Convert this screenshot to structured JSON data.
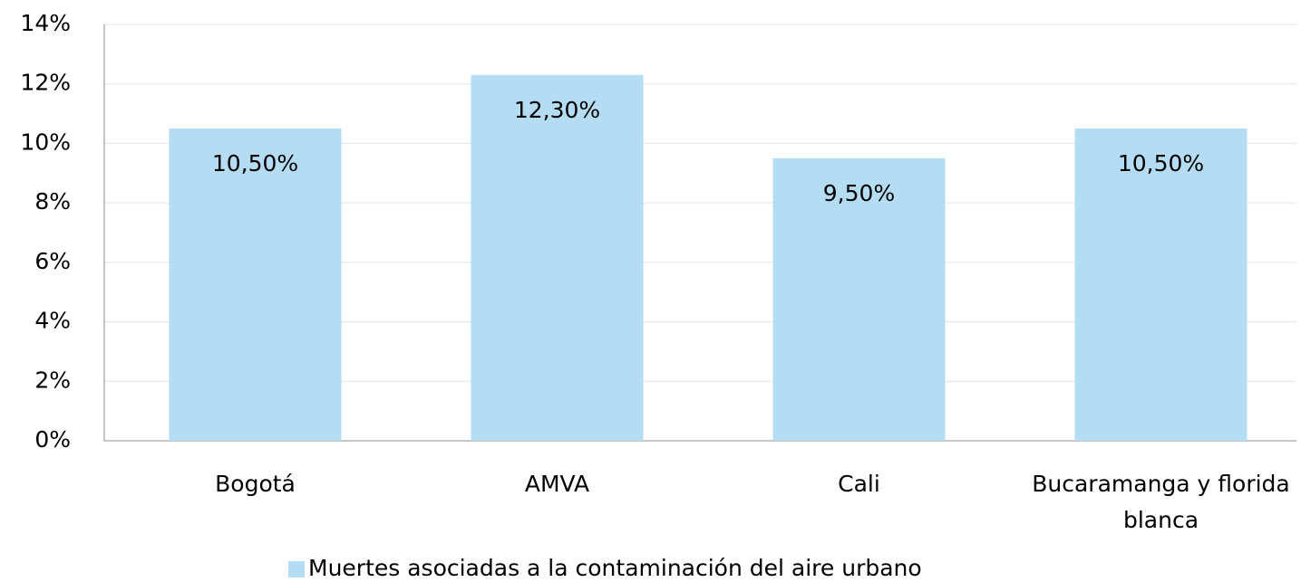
{
  "chart_data": {
    "type": "bar",
    "categories": [
      "Bogotá",
      "AMVA",
      "Cali",
      "Bucaramanga y florida blanca"
    ],
    "series": [
      {
        "name": "Muertes asociadas a la contaminación del aire urbano",
        "color": "#b4ddf3",
        "values": [
          10.5,
          12.3,
          9.5,
          10.5
        ],
        "value_labels": [
          "10,50%",
          "12,30%",
          "9,50%",
          "10,50%"
        ]
      }
    ],
    "ylim": [
      0,
      14
    ],
    "yticks": [
      {
        "value": 0,
        "label": "0%"
      },
      {
        "value": 2,
        "label": "2%"
      },
      {
        "value": 4,
        "label": "4%"
      },
      {
        "value": 6,
        "label": "6%"
      },
      {
        "value": 8,
        "label": "8%"
      },
      {
        "value": 10,
        "label": "10%"
      },
      {
        "value": 12,
        "label": "12%"
      },
      {
        "value": 14,
        "label": "14%"
      }
    ],
    "grid": true,
    "legend": "bottom"
  }
}
